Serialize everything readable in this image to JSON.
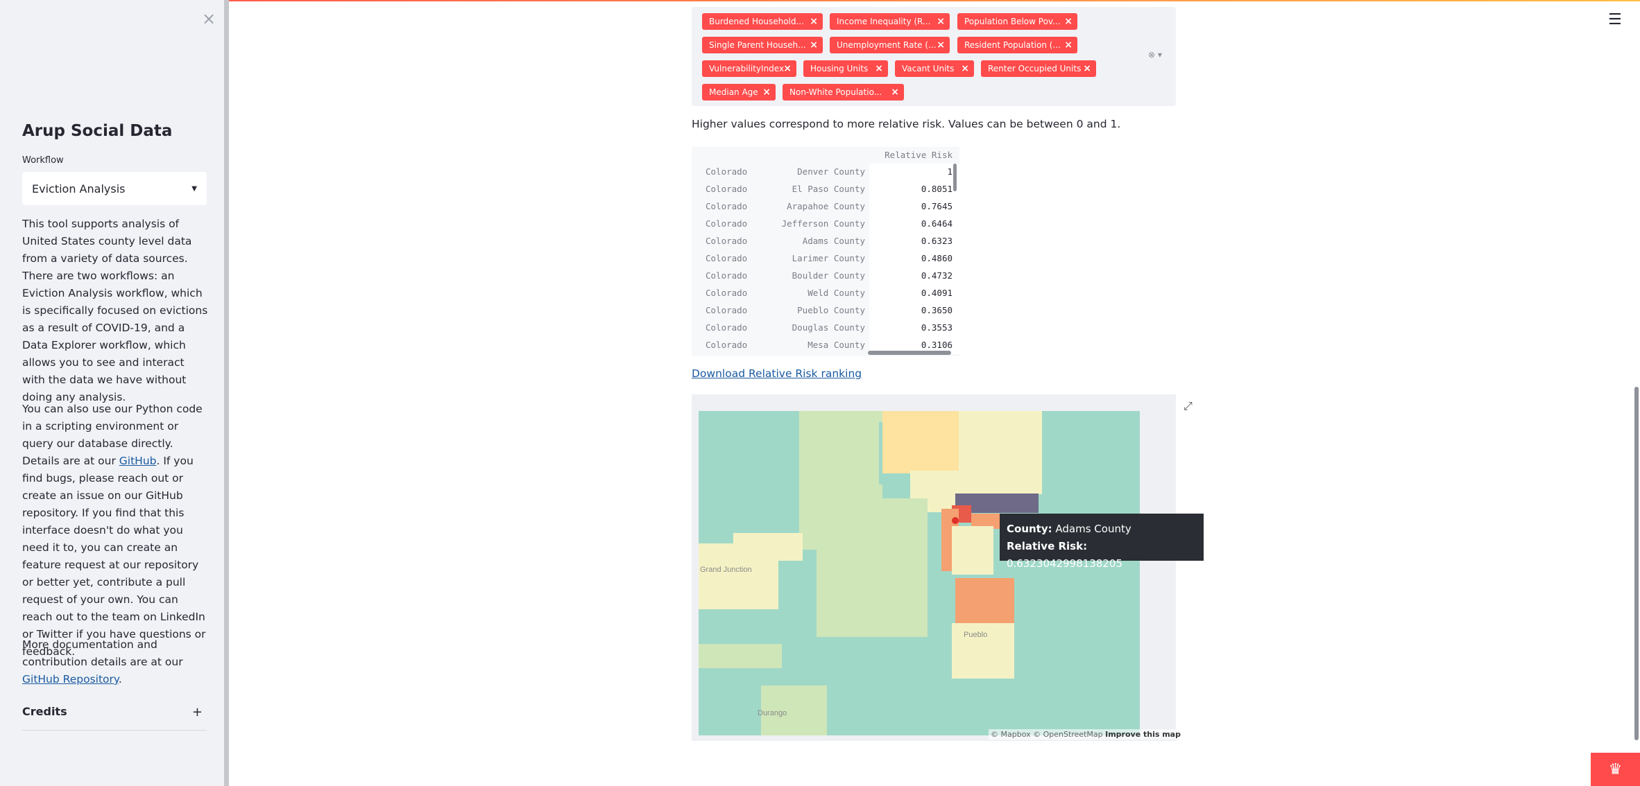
{
  "sidebar": {
    "close_glyph": "×",
    "app_title": "Arup Social Data",
    "workflow_label": "Workflow",
    "workflow_value": "Eviction Analysis",
    "para1": "This tool supports analysis of United States county level data from a variety of data sources. There are two workflows: an Eviction Analysis workflow, which is specifically focused on evictions as a result of COVID-19, and a Data Explorer workflow, which allows you to see and interact with the data we have without doing any analysis.",
    "para2_before": "You can also use our Python code in a scripting environment or query our database directly. Details are at our ",
    "para2_link": "GitHub",
    "para2_after": ". If you find bugs, please reach out or create an issue on our GitHub repository. If you find that this interface doesn't do what you need it to, you can create an feature request at our repository or better yet, contribute a pull request of your own. You can reach out to the team on LinkedIn or Twitter if you have questions or feedback.",
    "para3_before": "More documentation and contribution details are at our ",
    "para3_link": "GitHub Repository",
    "para3_after": ".",
    "credits_label": "Credits",
    "credits_toggle": "+"
  },
  "multiselect": {
    "chips": [
      "Burdened Household...",
      "Income Inequality (R...",
      "Population Below Pov...",
      "Single Parent Househ...",
      "Unemployment Rate (...",
      "Resident Population (...",
      "VulnerabilityIndex",
      "Housing Units",
      "Vacant Units",
      "Renter Occupied Units",
      "Median Age",
      "Non-White Populatio..."
    ],
    "chip_remove_glyph": "×",
    "controls_glyph": "⊗ ▾"
  },
  "caption": "Higher values correspond to more relative risk. Values can be between 0 and 1.",
  "table": {
    "column_header": "Relative Risk",
    "rows": [
      {
        "state": "Colorado",
        "county": "Denver County",
        "value": "1"
      },
      {
        "state": "Colorado",
        "county": "El Paso County",
        "value": "0.8051"
      },
      {
        "state": "Colorado",
        "county": "Arapahoe County",
        "value": "0.7645"
      },
      {
        "state": "Colorado",
        "county": "Jefferson County",
        "value": "0.6464"
      },
      {
        "state": "Colorado",
        "county": "Adams County",
        "value": "0.6323"
      },
      {
        "state": "Colorado",
        "county": "Larimer County",
        "value": "0.4860"
      },
      {
        "state": "Colorado",
        "county": "Boulder County",
        "value": "0.4732"
      },
      {
        "state": "Colorado",
        "county": "Weld County",
        "value": "0.4091"
      },
      {
        "state": "Colorado",
        "county": "Pueblo County",
        "value": "0.3650"
      },
      {
        "state": "Colorado",
        "county": "Douglas County",
        "value": "0.3553"
      },
      {
        "state": "Colorado",
        "county": "Mesa County",
        "value": "0.3106"
      }
    ]
  },
  "download_link": "Download Relative Risk ranking",
  "map": {
    "place_labels": [
      "Grand Junction",
      "Pueblo",
      "Durango"
    ],
    "tooltip": {
      "county_key": "County:",
      "county_value": "Adams County",
      "risk_key": "Relative Risk:",
      "risk_value": "0.6323042998138205"
    },
    "attribution_text": "© Mapbox © OpenStreetMap ",
    "attribution_link": "Improve this map",
    "colors": {
      "low": "#a0d8c8",
      "low_mid": "#cfe6b8",
      "mid": "#f4f2c4",
      "mid_high": "#fde2a0",
      "high": "#f4a070",
      "highlight": "#6e6a88",
      "top": "#e85a4a"
    }
  },
  "icons": {
    "hamburger": "☰",
    "expand": "⤢",
    "badge": "♛",
    "cursor": "↖"
  }
}
